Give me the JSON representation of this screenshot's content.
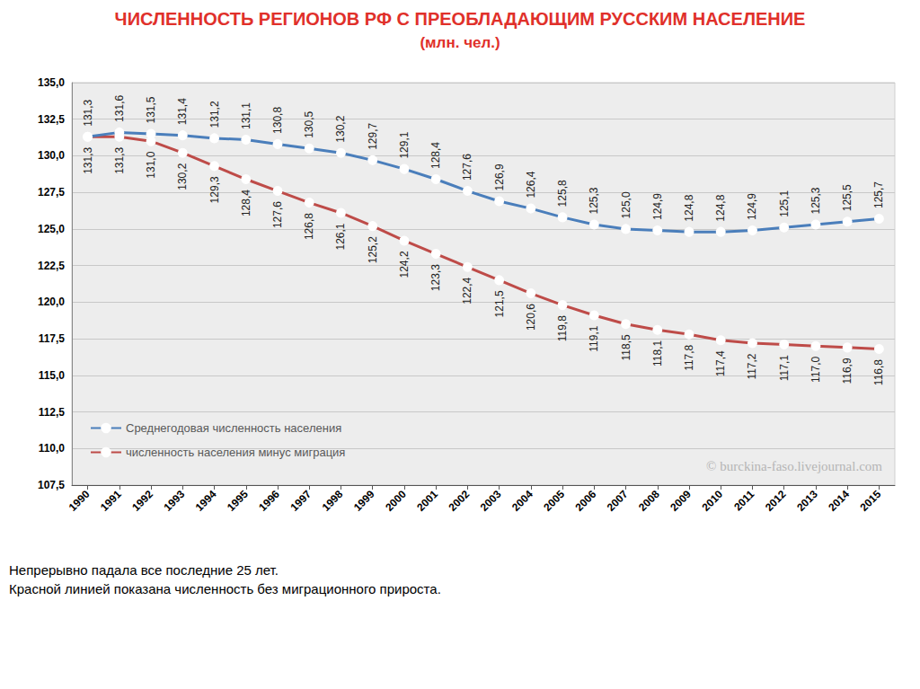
{
  "chart_data": {
    "type": "line",
    "title": "ЧИСЛЕННОСТЬ РЕГИОНОВ РФ С ПРЕОБЛАДАЮЩИМ РУССКИМ НАСЕЛЕНИЕ",
    "subtitle": "(млн. чел.)",
    "annotations": [
      "© burckina-faso.livejournal.com",
      "Непрерывно падала все последние 25 лет.",
      "Красной линией показана численность без миграционного прироста."
    ],
    "categories": [
      "1990",
      "1991",
      "1992",
      "1993",
      "1994",
      "1995",
      "1996",
      "1997",
      "1998",
      "1999",
      "2000",
      "2001",
      "2002",
      "2003",
      "2004",
      "2005",
      "2006",
      "2007",
      "2008",
      "2009",
      "2010",
      "2011",
      "2012",
      "2013",
      "2014",
      "2015"
    ],
    "series": [
      {
        "name": "Среднегодовая численность населения",
        "color": "#4a7ebb",
        "marker": "circle",
        "values": [
          131.3,
          131.6,
          131.5,
          131.4,
          131.2,
          131.1,
          130.8,
          130.5,
          130.2,
          129.7,
          129.1,
          128.4,
          127.6,
          126.9,
          126.4,
          125.8,
          125.3,
          125.0,
          124.9,
          124.8,
          124.8,
          124.9,
          125.1,
          125.3,
          125.5,
          125.7
        ],
        "value_labels": [
          "131,3",
          "131,6",
          "131,5",
          "131,4",
          "131,2",
          "131,1",
          "130,8",
          "130,5",
          "130,2",
          "129,7",
          "129,1",
          "128,4",
          "127,6",
          "126,9",
          "126,4",
          "125,8",
          "125,3",
          "125,0",
          "124,9",
          "124,8",
          "124,8",
          "124,9",
          "125,1",
          "125,3",
          "125,5",
          "125,7"
        ]
      },
      {
        "name": "численность населения минус миграция",
        "color": "#be4b48",
        "marker": "circle",
        "values": [
          131.3,
          131.3,
          131.0,
          130.2,
          129.3,
          128.4,
          127.6,
          126.8,
          126.1,
          125.2,
          124.2,
          123.3,
          122.4,
          121.5,
          120.6,
          119.8,
          119.1,
          118.5,
          118.1,
          117.8,
          117.4,
          117.2,
          117.1,
          117.0,
          116.9,
          116.8
        ],
        "value_labels": [
          "131,3",
          "131,3",
          "131,0",
          "130,2",
          "129,3",
          "128,4",
          "127,6",
          "126,8",
          "126,1",
          "125,2",
          "124,2",
          "123,3",
          "122,4",
          "121,5",
          "120,6",
          "119,8",
          "119,1",
          "118,5",
          "118,1",
          "117,8",
          "117,4",
          "117,2",
          "117,1",
          "117,0",
          "116,9",
          "116,8"
        ]
      }
    ],
    "ylim": [
      107.5,
      135
    ],
    "yticks": [
      {
        "value": 107.5,
        "label": "107,5"
      },
      {
        "value": 110,
        "label": "110,0"
      },
      {
        "value": 112.5,
        "label": "112,5"
      },
      {
        "value": 115,
        "label": "115,0"
      },
      {
        "value": 117.5,
        "label": "117,5"
      },
      {
        "value": 120,
        "label": "120,0"
      },
      {
        "value": 122.5,
        "label": "122,5"
      },
      {
        "value": 125,
        "label": "125,0"
      },
      {
        "value": 127.5,
        "label": "127,5"
      },
      {
        "value": 130,
        "label": "130,0"
      },
      {
        "value": 132.5,
        "label": "132,5"
      },
      {
        "value": 135,
        "label": "135,0"
      }
    ],
    "grid": true,
    "legend": "lower left",
    "data_labels": true
  }
}
